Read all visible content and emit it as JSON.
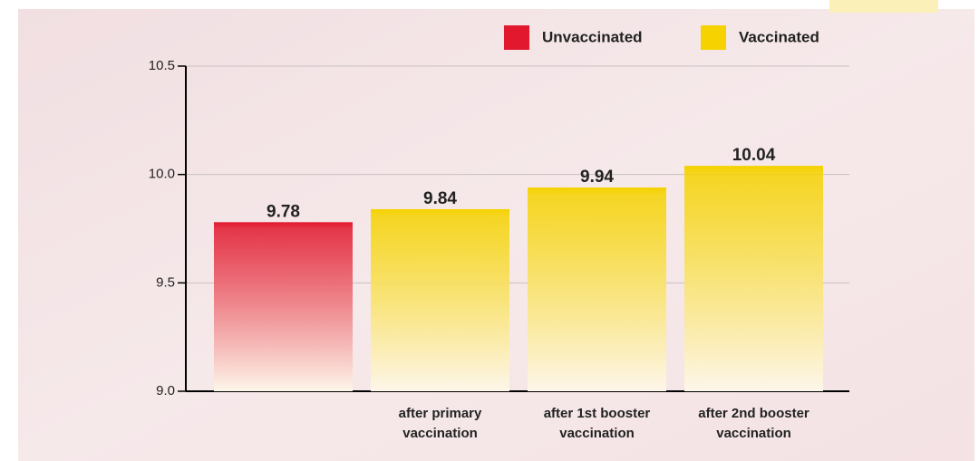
{
  "chart_data": {
    "type": "bar",
    "categories": [
      null,
      "after primary vaccination",
      "after 1st booster vaccination",
      "after 2nd booster vaccination"
    ],
    "series": [
      {
        "name": "Unvaccinated",
        "color": "#e1182e",
        "values": [
          9.78,
          null,
          null,
          null
        ]
      },
      {
        "name": "Vaccinated",
        "color": "#f5d200",
        "values": [
          null,
          9.84,
          9.94,
          10.04
        ]
      }
    ],
    "ylim": [
      9.0,
      10.5
    ],
    "yticks": [
      {
        "value": 9.0,
        "label": "9.0"
      },
      9.5,
      {
        "value": 10.0,
        "label": "10.0"
      },
      10.5
    ],
    "grid": true
  }
}
